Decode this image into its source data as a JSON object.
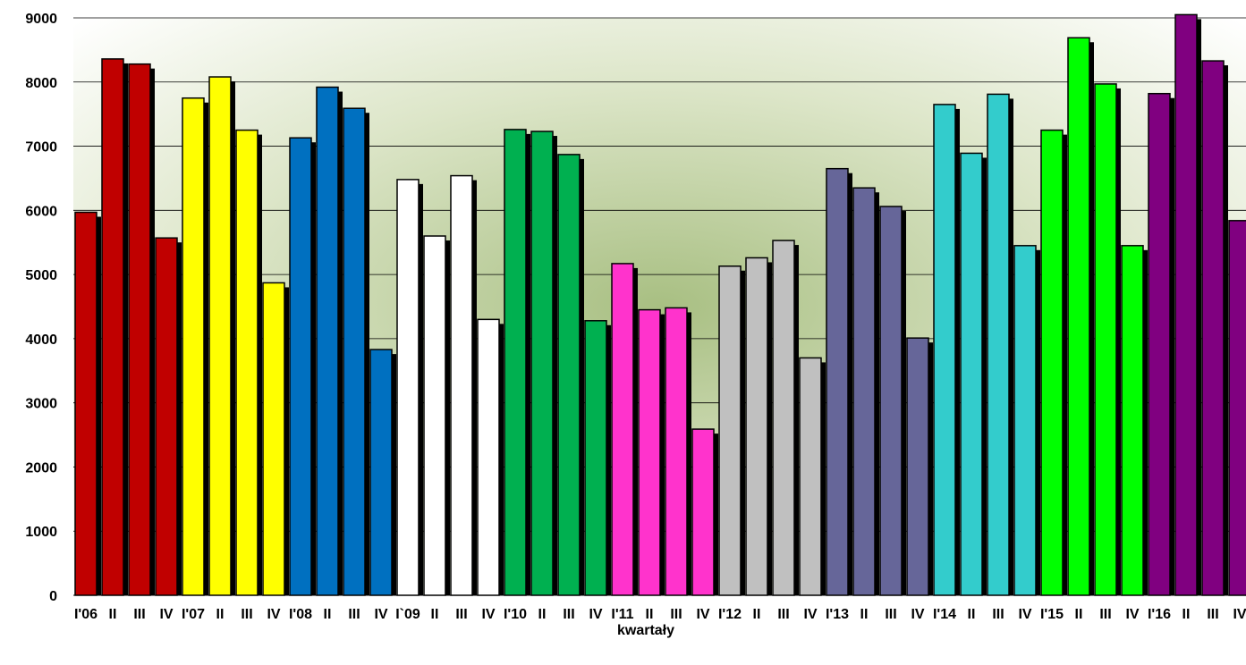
{
  "chart_data": {
    "type": "bar",
    "xlabel": "kwartały",
    "ylabel": "",
    "ylim": [
      0,
      9000
    ],
    "yticks": [
      0,
      1000,
      2000,
      3000,
      4000,
      5000,
      6000,
      7000,
      8000,
      9000
    ],
    "grid": true,
    "legend": "none",
    "categories": [
      "I'06",
      "II",
      "III",
      "IV",
      "I'07",
      "II",
      "III",
      "IV",
      "I'08",
      "II",
      "III",
      "IV",
      "I`09",
      "II",
      "III",
      "IV",
      "I'10",
      "II",
      "III",
      "IV",
      "I'11",
      "II",
      "III",
      "IV",
      "I'12",
      "II",
      "III",
      "IV",
      "I'13",
      "II",
      "III",
      "IV",
      "I'14",
      "II",
      "III",
      "IV",
      "I'15",
      "II",
      "III",
      "IV",
      "I'16",
      "II",
      "III",
      "IV"
    ],
    "values": [
      5970,
      8360,
      8280,
      5570,
      7750,
      8080,
      7250,
      4870,
      7130,
      7920,
      7590,
      3830,
      6480,
      5600,
      6540,
      4300,
      7260,
      7230,
      6870,
      4280,
      5170,
      4450,
      4480,
      2590,
      5130,
      5260,
      5530,
      3700,
      6650,
      6350,
      6060,
      4010,
      7650,
      6890,
      7810,
      5450,
      7250,
      8690,
      7970,
      5450,
      7820,
      9050,
      8330,
      5840
    ],
    "year_colors": [
      "#c00000",
      "#ffff00",
      "#0070c0",
      "#ffffff",
      "#00b050",
      "#ff33cc",
      "#c0c0c0",
      "#666699",
      "#33cccc",
      "#00ff00",
      "#800080"
    ]
  }
}
